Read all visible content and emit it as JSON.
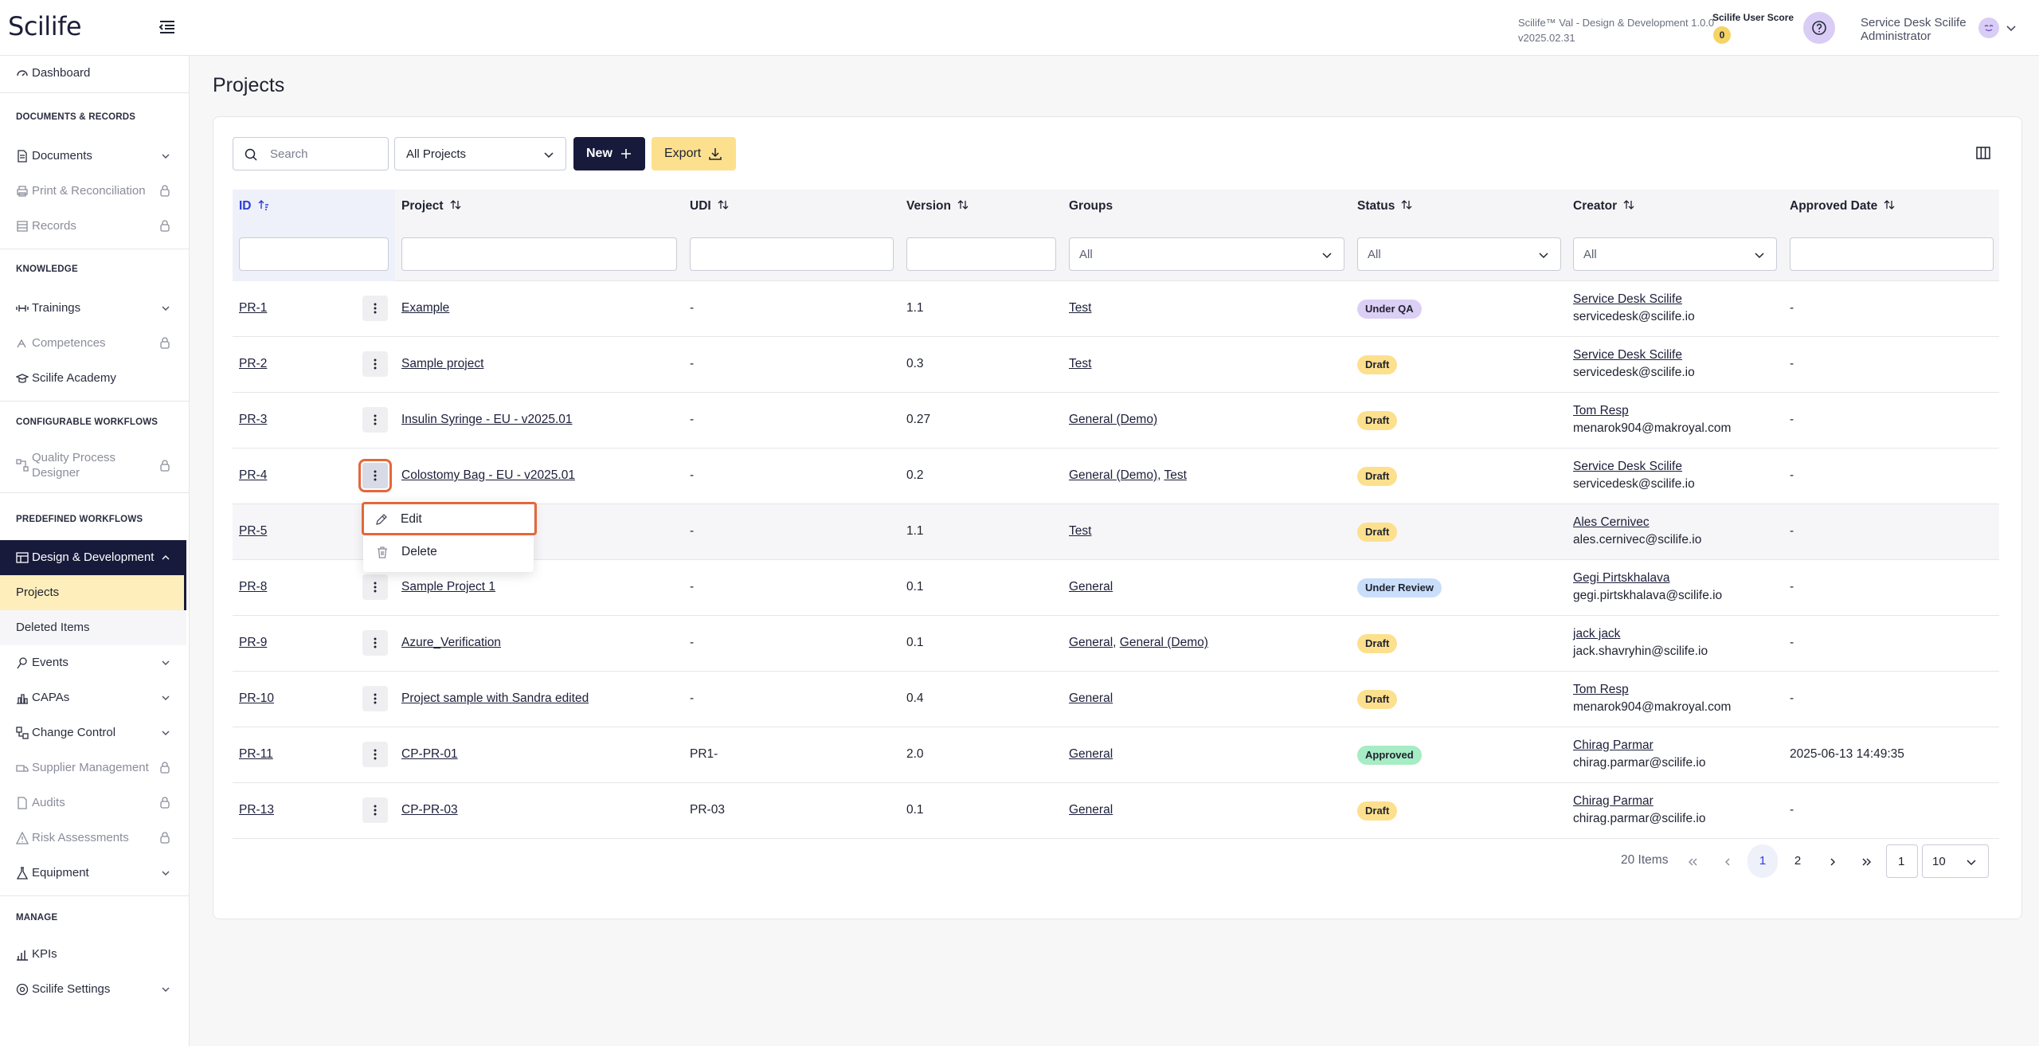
{
  "app": {
    "logo": "Scilife",
    "version_line1": "Scilife™ Val - Design & Development 1.0.0",
    "version_line2": "v2025.02.31",
    "score_label": "Scilife User Score",
    "score_value": "0",
    "user_line1": "Service Desk Scilife",
    "user_line2": "Administrator"
  },
  "sidebar": {
    "dashboard": "Dashboard",
    "sec_docs": "DOCUMENTS & RECORDS",
    "documents": "Documents",
    "print_recon": "Print & Reconciliation",
    "records": "Records",
    "sec_knowledge": "KNOWLEDGE",
    "trainings": "Trainings",
    "competences": "Competences",
    "academy": "Scilife Academy",
    "sec_config": "CONFIGURABLE WORKFLOWS",
    "qpd_line1": "Quality Process",
    "qpd_line2": "Designer",
    "sec_predef": "PREDEFINED WORKFLOWS",
    "design_dev": "Design & Development",
    "projects": "Projects",
    "deleted_items": "Deleted Items",
    "events": "Events",
    "capas": "CAPAs",
    "change_control": "Change Control",
    "supplier_mgmt": "Supplier Management",
    "audits": "Audits",
    "risk": "Risk Assessments",
    "equipment": "Equipment",
    "sec_manage": "MANAGE",
    "kpis": "KPIs",
    "settings": "Scilife Settings"
  },
  "page": {
    "title": "Projects",
    "search_placeholder": "Search",
    "filter_projects": "All Projects",
    "new_label": "New",
    "export_label": "Export"
  },
  "table": {
    "headers": {
      "id": "ID",
      "project": "Project",
      "udi": "UDI",
      "version": "Version",
      "groups": "Groups",
      "status": "Status",
      "creator": "Creator",
      "approved_date": "Approved Date"
    },
    "filter_all": "All",
    "rows": [
      {
        "id": "PR-1",
        "project": "Example",
        "udi": "-",
        "version": "1.1",
        "groups": "Test",
        "groups2": "",
        "status": "Under QA",
        "creator_name": "Service Desk Scilife",
        "creator_email": "servicedesk@scilife.io",
        "approved": "-"
      },
      {
        "id": "PR-2",
        "project": "Sample project",
        "udi": "-",
        "version": "0.3",
        "groups": "Test",
        "groups2": "",
        "status": "Draft",
        "creator_name": "Service Desk Scilife",
        "creator_email": "servicedesk@scilife.io",
        "approved": "-"
      },
      {
        "id": "PR-3",
        "project": "Insulin Syringe - EU - v2025.01",
        "udi": "-",
        "version": "0.27",
        "groups": "General (Demo)",
        "groups2": "",
        "status": "Draft",
        "creator_name": "Tom Resp",
        "creator_email": "menarok904@makroyal.com",
        "approved": "-"
      },
      {
        "id": "PR-4",
        "project": "Colostomy Bag - EU - v2025.01",
        "udi": "-",
        "version": "0.2",
        "groups": "General (Demo)",
        "groups2": "Test",
        "status": "Draft",
        "creator_name": "Service Desk Scilife",
        "creator_email": "servicedesk@scilife.io",
        "approved": "-"
      },
      {
        "id": "PR-5",
        "project": "",
        "udi": "-",
        "version": "1.1",
        "groups": "Test",
        "groups2": "",
        "status": "Draft",
        "creator_name": "Ales Cernivec",
        "creator_email": "ales.cernivec@scilife.io",
        "approved": "-"
      },
      {
        "id": "PR-8",
        "project": "Sample Project 1",
        "udi": "-",
        "version": "0.1",
        "groups": "General",
        "groups2": "",
        "status": "Under Review",
        "creator_name": "Gegi Pirtskhalava",
        "creator_email": "gegi.pirtskhalava@scilife.io",
        "approved": "-"
      },
      {
        "id": "PR-9",
        "project": "Azure_Verification",
        "udi": "-",
        "version": "0.1",
        "groups": "General",
        "groups2": "General (Demo)",
        "status": "Draft",
        "creator_name": "jack jack",
        "creator_email": "jack.shavryhin@scilife.io",
        "approved": "-"
      },
      {
        "id": "PR-10",
        "project": "Project sample with Sandra edited",
        "udi": "-",
        "version": "0.4",
        "groups": "General",
        "groups2": "",
        "status": "Draft",
        "creator_name": "Tom Resp",
        "creator_email": "menarok904@makroyal.com",
        "approved": "-"
      },
      {
        "id": "PR-11",
        "project": "CP-PR-01",
        "udi": "PR1-",
        "version": "2.0",
        "groups": "General",
        "groups2": "",
        "status": "Approved",
        "creator_name": "Chirag Parmar",
        "creator_email": "chirag.parmar@scilife.io",
        "approved": "2025-06-13 14:49:35"
      },
      {
        "id": "PR-13",
        "project": "CP-PR-03",
        "udi": "PR-03",
        "version": "0.1",
        "groups": "General",
        "groups2": "",
        "status": "Draft",
        "creator_name": "Chirag Parmar",
        "creator_email": "chirag.parmar@scilife.io",
        "approved": "-"
      }
    ]
  },
  "menu": {
    "edit": "Edit",
    "delete": "Delete"
  },
  "pagination": {
    "items": "20 Items",
    "page1": "1",
    "page2": "2",
    "goto": "1",
    "page_size": "10"
  },
  "colors": {
    "navy": "#171a3b",
    "accent_yellow": "#fde08d",
    "highlight_orange": "#e4673b",
    "badge_under_qa": "#dccff5",
    "badge_draft": "#fde08d",
    "badge_under_review": "#c9defa",
    "badge_approved": "#a6ecc4"
  }
}
